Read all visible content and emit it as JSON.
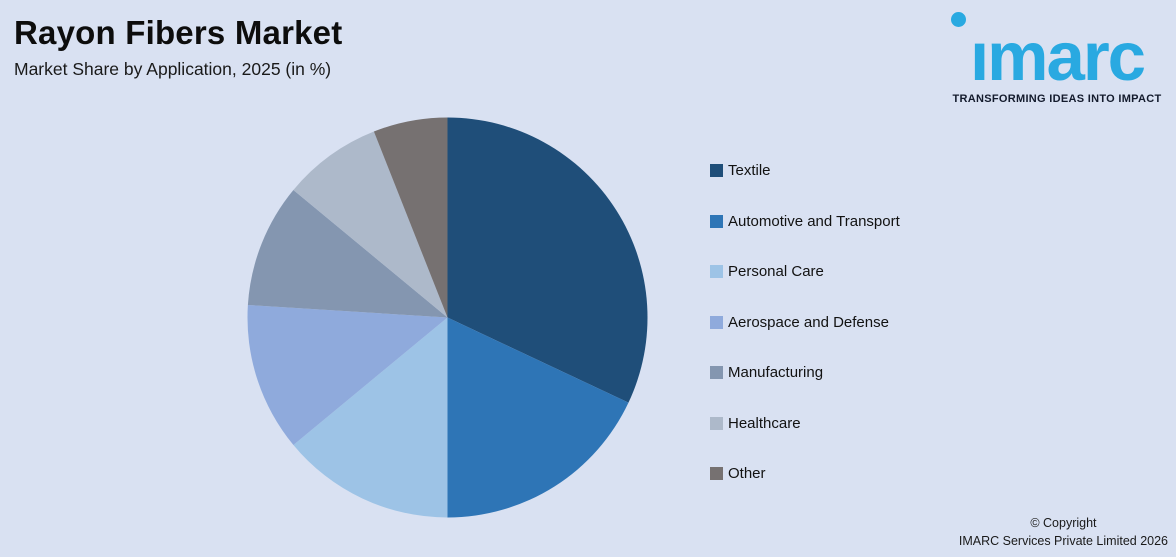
{
  "header": {
    "title": "Rayon Fibers Market",
    "subtitle": "Market Share by Application, 2025 (in %)"
  },
  "logo": {
    "wordmark": "imarc",
    "tagline": "TRANSFORMING IDEAS INTO IMPACT",
    "brand_color": "#29A9E1"
  },
  "chart_data": {
    "type": "pie",
    "title": "Rayon Fibers Market",
    "subtitle": "Market Share by Application, 2025 (in %)",
    "unit": "%",
    "categories": [
      "Textile",
      "Automotive and Transport",
      "Personal Care",
      "Aerospace and Defense",
      "Manufacturing",
      "Healthcare",
      "Other"
    ],
    "values": [
      32,
      18,
      14,
      12,
      10,
      8,
      6
    ],
    "colors": [
      "#1F4E79",
      "#2E75B6",
      "#9DC3E6",
      "#8FAADC",
      "#8496B0",
      "#ADB9CA",
      "#767171"
    ],
    "start_angle_deg": 0,
    "direction": "clockwise",
    "legend_position": "right",
    "data_labels": false
  },
  "footer": {
    "line1": "© Copyright",
    "line2": "IMARC Services Private Limited 2026"
  },
  "theme": {
    "background": "#D9E1F2",
    "text_color": "#121212"
  }
}
